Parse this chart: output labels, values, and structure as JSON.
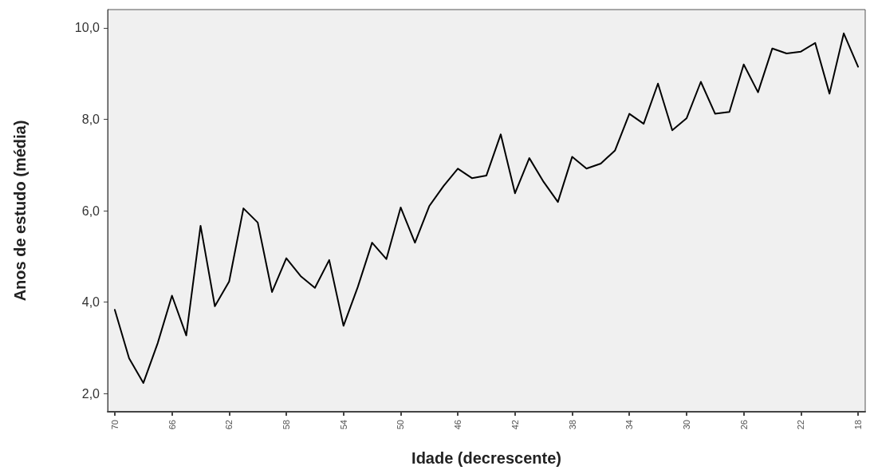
{
  "chart_data": {
    "type": "line",
    "xlabel": "Idade (decrescente)",
    "ylabel": "Anos de estudo (média)",
    "categories": [
      "70",
      null,
      null,
      null,
      "66",
      null,
      null,
      null,
      "62",
      null,
      null,
      null,
      "58",
      null,
      null,
      null,
      "54",
      null,
      null,
      null,
      "50",
      null,
      null,
      null,
      "46",
      null,
      null,
      null,
      "42",
      null,
      null,
      null,
      "38",
      null,
      null,
      null,
      "34",
      null,
      null,
      null,
      "30",
      null,
      null,
      null,
      "26",
      null,
      null,
      null,
      "22",
      null,
      null,
      null,
      "18"
    ],
    "series": [
      {
        "color": "#000000",
        "values": [
          3.83,
          2.77,
          2.23,
          3.1,
          4.14,
          3.27,
          5.67,
          3.91,
          4.45,
          6.05,
          5.74,
          4.22,
          4.96,
          4.57,
          4.31,
          4.92,
          3.48,
          4.33,
          5.3,
          4.94,
          6.07,
          5.3,
          6.1,
          6.54,
          6.92,
          6.71,
          6.77,
          7.67,
          6.38,
          7.15,
          6.63,
          6.19,
          7.18,
          6.92,
          7.03,
          7.32,
          8.12,
          7.9,
          8.78,
          7.76,
          8.02,
          8.82,
          8.12,
          8.16,
          9.2,
          8.59,
          9.55,
          9.44,
          9.48,
          9.67,
          8.56,
          9.88,
          9.15
        ]
      }
    ],
    "ylim": [
      1.6,
      10.4
    ],
    "yticks": [
      {
        "value": 2,
        "label": "2,0"
      },
      {
        "value": 4,
        "label": "4,0"
      },
      {
        "value": 6,
        "label": "6,0"
      },
      {
        "value": 8,
        "label": "8,0"
      },
      {
        "value": 10,
        "label": "10,0"
      }
    ],
    "grid": false,
    "marker": "none",
    "line_style": "solid"
  }
}
